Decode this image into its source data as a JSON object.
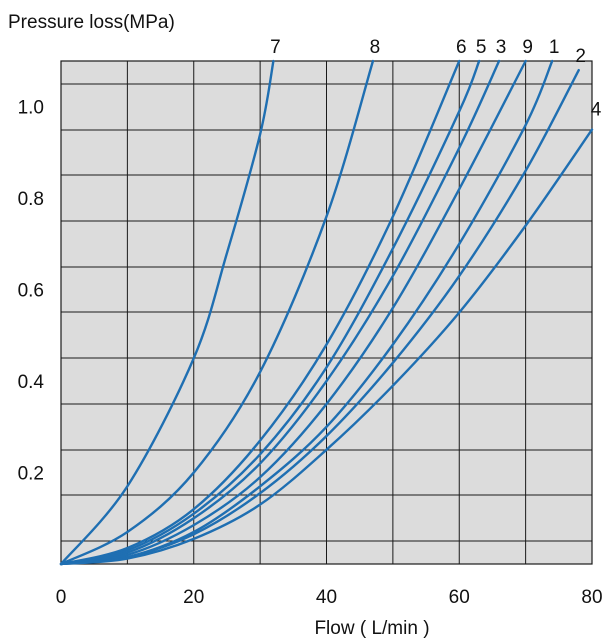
{
  "chart_data": {
    "type": "line",
    "xlabel": "Flow ( L/min )",
    "ylabel": "Pressure loss(MPa)",
    "xlim": [
      0,
      80
    ],
    "ylim": [
      0,
      1.1
    ],
    "x_ticks": [
      "0",
      "20",
      "40",
      "60",
      "80"
    ],
    "y_ticks": [
      {
        "value": 0.2,
        "label": "0.2"
      },
      {
        "value": 0.4,
        "label": "0.4"
      },
      {
        "value": 0.6,
        "label": "0.6"
      },
      {
        "value": 0.8,
        "label": "0.8"
      },
      {
        "value": 1.0,
        "label": "1.0"
      }
    ],
    "grid": true,
    "plot_background": "#dcdcdc",
    "line_color": "#1f6fb2",
    "series": [
      {
        "name": "7",
        "points": [
          [
            0,
            0
          ],
          [
            10,
            0.17
          ],
          [
            20,
            0.45
          ],
          [
            25,
            0.68
          ],
          [
            30,
            0.94
          ],
          [
            32,
            1.1
          ]
        ]
      },
      {
        "name": "8",
        "points": [
          [
            0,
            0
          ],
          [
            10,
            0.07
          ],
          [
            20,
            0.2
          ],
          [
            30,
            0.42
          ],
          [
            40,
            0.76
          ],
          [
            47,
            1.1
          ]
        ]
      },
      {
        "name": "6",
        "points": [
          [
            0,
            0
          ],
          [
            10,
            0.035
          ],
          [
            20,
            0.12
          ],
          [
            30,
            0.27
          ],
          [
            40,
            0.48
          ],
          [
            50,
            0.76
          ],
          [
            60,
            1.1
          ]
        ]
      },
      {
        "name": "5",
        "points": [
          [
            0,
            0
          ],
          [
            10,
            0.03
          ],
          [
            20,
            0.11
          ],
          [
            30,
            0.24
          ],
          [
            40,
            0.43
          ],
          [
            50,
            0.69
          ],
          [
            60,
            0.99
          ],
          [
            63,
            1.1
          ]
        ]
      },
      {
        "name": "3",
        "points": [
          [
            0,
            0
          ],
          [
            10,
            0.025
          ],
          [
            20,
            0.1
          ],
          [
            30,
            0.22
          ],
          [
            40,
            0.4
          ],
          [
            50,
            0.63
          ],
          [
            60,
            0.91
          ],
          [
            66,
            1.1
          ]
        ]
      },
      {
        "name": "9",
        "points": [
          [
            0,
            0
          ],
          [
            10,
            0.02
          ],
          [
            20,
            0.085
          ],
          [
            30,
            0.19
          ],
          [
            40,
            0.35
          ],
          [
            50,
            0.56
          ],
          [
            60,
            0.82
          ],
          [
            70,
            1.1
          ]
        ]
      },
      {
        "name": "1",
        "points": [
          [
            0,
            0
          ],
          [
            10,
            0.015
          ],
          [
            20,
            0.07
          ],
          [
            30,
            0.17
          ],
          [
            40,
            0.3
          ],
          [
            50,
            0.48
          ],
          [
            60,
            0.7
          ],
          [
            70,
            0.96
          ],
          [
            74,
            1.1
          ]
        ]
      },
      {
        "name": "2",
        "points": [
          [
            0,
            0
          ],
          [
            10,
            0.015
          ],
          [
            20,
            0.065
          ],
          [
            30,
            0.155
          ],
          [
            40,
            0.28
          ],
          [
            50,
            0.44
          ],
          [
            60,
            0.63
          ],
          [
            70,
            0.86
          ],
          [
            78,
            1.08
          ]
        ]
      },
      {
        "name": "4",
        "points": [
          [
            0,
            0
          ],
          [
            10,
            0.012
          ],
          [
            20,
            0.055
          ],
          [
            30,
            0.13
          ],
          [
            40,
            0.25
          ],
          [
            50,
            0.39
          ],
          [
            60,
            0.55
          ],
          [
            70,
            0.74
          ],
          [
            80,
            0.95
          ]
        ]
      }
    ]
  }
}
